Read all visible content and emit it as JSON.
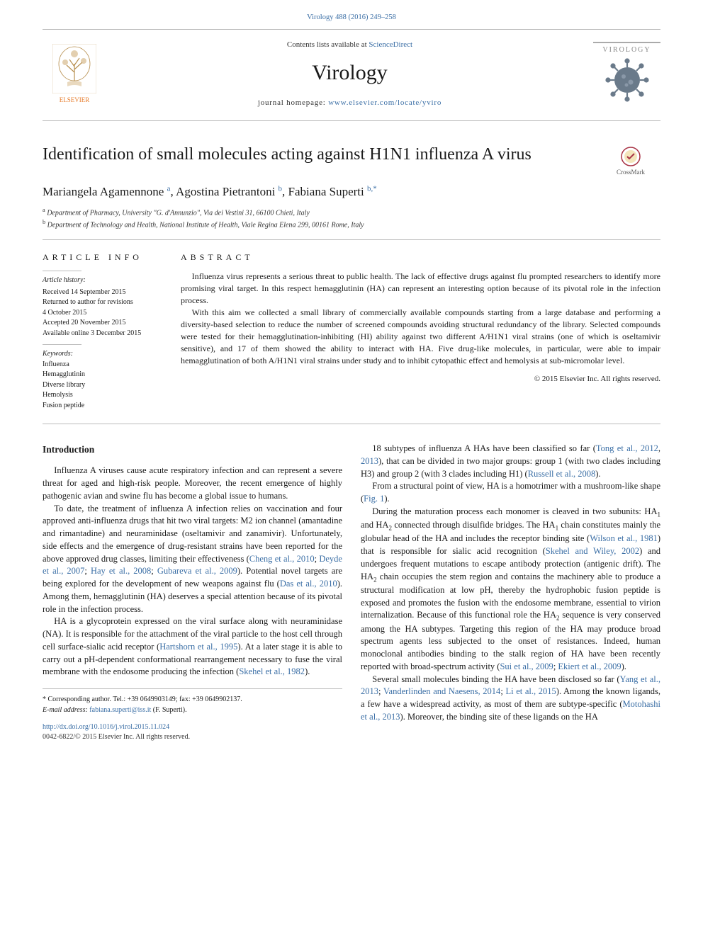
{
  "header": {
    "top_link": "Virology 488 (2016) 249–258",
    "contents_text": "Contents lists available at",
    "science_direct": "ScienceDirect",
    "journal": "Virology",
    "homepage_label": "journal homepage:",
    "homepage_url": "www.elsevier.com/locate/yviro",
    "elsevier_label": "ELSEVIER",
    "virology_label": "VIROLOGY"
  },
  "article": {
    "title": "Identification of small molecules acting against H1N1 influenza A virus",
    "crossmark": "CrossMark",
    "authors_html": "Mariangela Agamennone <sup>a</sup>, Agostina Pietrantoni <sup>b</sup>, Fabiana Superti <sup>b,*</sup>",
    "affiliations": {
      "a": "Department of Pharmacy, University \"G. d'Annunzio\", Via dei Vestini 31, 66100 Chieti, Italy",
      "b": "Department of Technology and Health, National Institute of Health, Viale Regina Elena 299, 00161 Rome, Italy"
    }
  },
  "article_info": {
    "heading": "article info",
    "history_label": "Article history:",
    "history": [
      "Received 14 September 2015",
      "Returned to author for revisions",
      "4 October 2015",
      "Accepted 20 November 2015",
      "Available online 3 December 2015"
    ],
    "keywords_label": "Keywords:",
    "keywords": [
      "Influenza",
      "Hemagglutinin",
      "Diverse library",
      "Hemolysis",
      "Fusion peptide"
    ]
  },
  "abstract": {
    "heading": "abstract",
    "p1": "Influenza virus represents a serious threat to public health. The lack of effective drugs against flu prompted researchers to identify more promising viral target. In this respect hemagglutinin (HA) can represent an interesting option because of its pivotal role in the infection process.",
    "p2": "With this aim we collected a small library of commercially available compounds starting from a large database and performing a diversity-based selection to reduce the number of screened compounds avoiding structural redundancy of the library. Selected compounds were tested for their hemagglutination-inhibiting (HI) ability against two different A/H1N1 viral strains (one of which is oseltamivir sensitive), and 17 of them showed the ability to interact with HA. Five drug-like molecules, in particular, were able to impair hemagglutination of both A/H1N1 viral strains under study and to inhibit cytopathic effect and hemolysis at sub-micromolar level.",
    "copyright": "© 2015 Elsevier Inc. All rights reserved."
  },
  "intro": {
    "heading": "Introduction",
    "p1": "Influenza A viruses cause acute respiratory infection and can represent a severe threat for aged and high-risk people. Moreover, the recent emergence of highly pathogenic avian and swine flu has become a global issue to humans.",
    "p2_a": "To date, the treatment of influenza A infection relies on vaccination and four approved anti-influenza drugs that hit two viral targets: M2 ion channel (amantadine and rimantadine) and neuraminidase (oseltamivir and zanamivir). Unfortunately, side effects and the emergence of drug-resistant strains have been reported for the above approved drug classes, limiting their effectiveness (",
    "c1": "Cheng et al., 2010",
    "p2_b": "; ",
    "c2": "Deyde et al., 2007",
    "p2_c": "; ",
    "c3": "Hay et al., 2008",
    "p2_d": "; ",
    "c4": "Gubareva et al., 2009",
    "p2_e": "). Potential novel targets are being explored for the development of new weapons against flu (",
    "c5": "Das et al., 2010",
    "p2_f": "). Among them, hemagglutinin (HA) deserves a special attention because of its pivotal role in the infection process.",
    "p3_a": "HA is a glycoprotein expressed on the viral surface along with neuraminidase (NA). It is responsible for the attachment of the viral particle to the host cell through cell surface-sialic acid receptor (",
    "c6": "Hartshorn et al., 1995",
    "p3_b": "). At a later stage it is able to carry out a pH-dependent conformational rearrangement necessary to fuse the viral membrane with the endosome producing the infection (",
    "c7": "Skehel et al., 1982",
    "p3_c": ")."
  },
  "col2": {
    "p1_a": "18 subtypes of influenza A HAs have been classified so far (",
    "c1": "Tong et al., 2012",
    "p1_b": ", ",
    "c2": "2013",
    "p1_c": "), that can be divided in two major groups: group 1 (with two clades including H3) and group 2 (with 3 clades including H1) (",
    "c3": "Russell et al., 2008",
    "p1_d": ").",
    "p2_a": "From a structural point of view, HA is a homotrimer with a mushroom-like shape (",
    "c4": "Fig. 1",
    "p2_b": ").",
    "p3_a": "During the maturation process each monomer is cleaved in two subunits: HA",
    "p3_b": " and HA",
    "p3_c": " connected through disulfide bridges. The HA",
    "p3_d": " chain constitutes mainly the globular head of the HA and includes the receptor binding site (",
    "c5": "Wilson et al., 1981",
    "p3_e": ") that is responsible for sialic acid recognition (",
    "c6": "Skehel and Wiley, 2002",
    "p3_f": ") and undergoes frequent mutations to escape antibody protection (antigenic drift). The HA",
    "p3_g": " chain occupies the stem region and contains the machinery able to produce a structural modification at low pH, thereby the hydrophobic fusion peptide is exposed and promotes the fusion with the endosome membrane, essential to virion internalization. Because of this functional role the HA",
    "p3_h": " sequence is very conserved among the HA subtypes. Targeting this region of the HA may produce broad spectrum agents less subjected to the onset of resistances. Indeed, human monoclonal antibodies binding to the stalk region of HA have been recently reported with broad-spectrum activity (",
    "c7": "Sui et al., 2009",
    "p3_i": "; ",
    "c8": "Ekiert et al., 2009",
    "p3_j": ").",
    "p4_a": "Several small molecules binding the HA have been disclosed so far (",
    "c9": "Yang et al., 2013",
    "p4_b": "; ",
    "c10": "Vanderlinden and Naesens, 2014",
    "p4_c": "; ",
    "c11": "Li et al., 2015",
    "p4_d": "). Among the known ligands, a few have a widespread activity, as most of them are subtype-specific (",
    "c12": "Motohashi et al., 2013",
    "p4_e": "). Moreover, the binding site of these ligands on the HA"
  },
  "footer": {
    "corr": "* Corresponding author. Tel.: +39 0649903149; fax: +39 0649902137.",
    "email_label": "E-mail address:",
    "email": "fabiana.superti@iss.it",
    "email_name": "(F. Superti).",
    "doi": "http://dx.doi.org/10.1016/j.virol.2015.11.024",
    "copyright": "0042-6822/© 2015 Elsevier Inc. All rights reserved."
  },
  "colors": {
    "link": "#3a6ea5",
    "elsevier_orange": "#e77c2b",
    "rule": "#bbbbbb",
    "text": "#1a1a1a"
  },
  "fonts": {
    "body_pt": 12.5,
    "title_pt": 24,
    "journal_pt": 30,
    "small_pt": 10
  }
}
